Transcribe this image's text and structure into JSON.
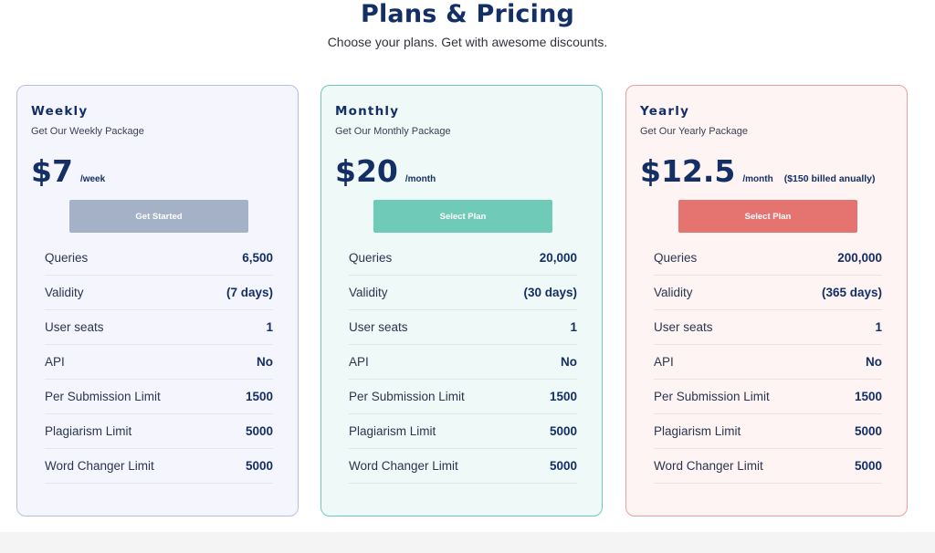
{
  "header": {
    "title": "Plans & Pricing",
    "subtitle": "Choose your plans. Get with awesome discounts."
  },
  "plans": [
    {
      "name": "Weekly",
      "description": "Get Our Weekly Package",
      "price": "$7",
      "period": "/week",
      "billing_note": "",
      "button": "Get Started",
      "features": [
        {
          "label": "Queries",
          "value": "6,500"
        },
        {
          "label": "Validity",
          "value": "(7 days)"
        },
        {
          "label": "User seats",
          "value": "1"
        },
        {
          "label": "API",
          "value": "No"
        },
        {
          "label": "Per Submission Limit",
          "value": "1500"
        },
        {
          "label": "Plagiarism Limit",
          "value": "5000"
        },
        {
          "label": "Word Changer Limit",
          "value": "5000"
        }
      ]
    },
    {
      "name": "Monthly",
      "description": "Get Our Monthly Package",
      "price": "$20",
      "period": "/month",
      "billing_note": "",
      "button": "Select Plan",
      "features": [
        {
          "label": "Queries",
          "value": "20,000"
        },
        {
          "label": "Validity",
          "value": "(30 days)"
        },
        {
          "label": "User seats",
          "value": "1"
        },
        {
          "label": "API",
          "value": "No"
        },
        {
          "label": "Per Submission Limit",
          "value": "1500"
        },
        {
          "label": "Plagiarism Limit",
          "value": "5000"
        },
        {
          "label": "Word Changer Limit",
          "value": "5000"
        }
      ]
    },
    {
      "name": "Yearly",
      "description": "Get Our Yearly Package",
      "price": "$12.5",
      "period": "/month",
      "billing_note": "($150 billed anually)",
      "button": "Select Plan",
      "features": [
        {
          "label": "Queries",
          "value": "200,000"
        },
        {
          "label": "Validity",
          "value": "(365 days)"
        },
        {
          "label": "User seats",
          "value": "1"
        },
        {
          "label": "API",
          "value": "No"
        },
        {
          "label": "Per Submission Limit",
          "value": "1500"
        },
        {
          "label": "Plagiarism Limit",
          "value": "5000"
        },
        {
          "label": "Word Changer Limit",
          "value": "5000"
        }
      ]
    }
  ]
}
